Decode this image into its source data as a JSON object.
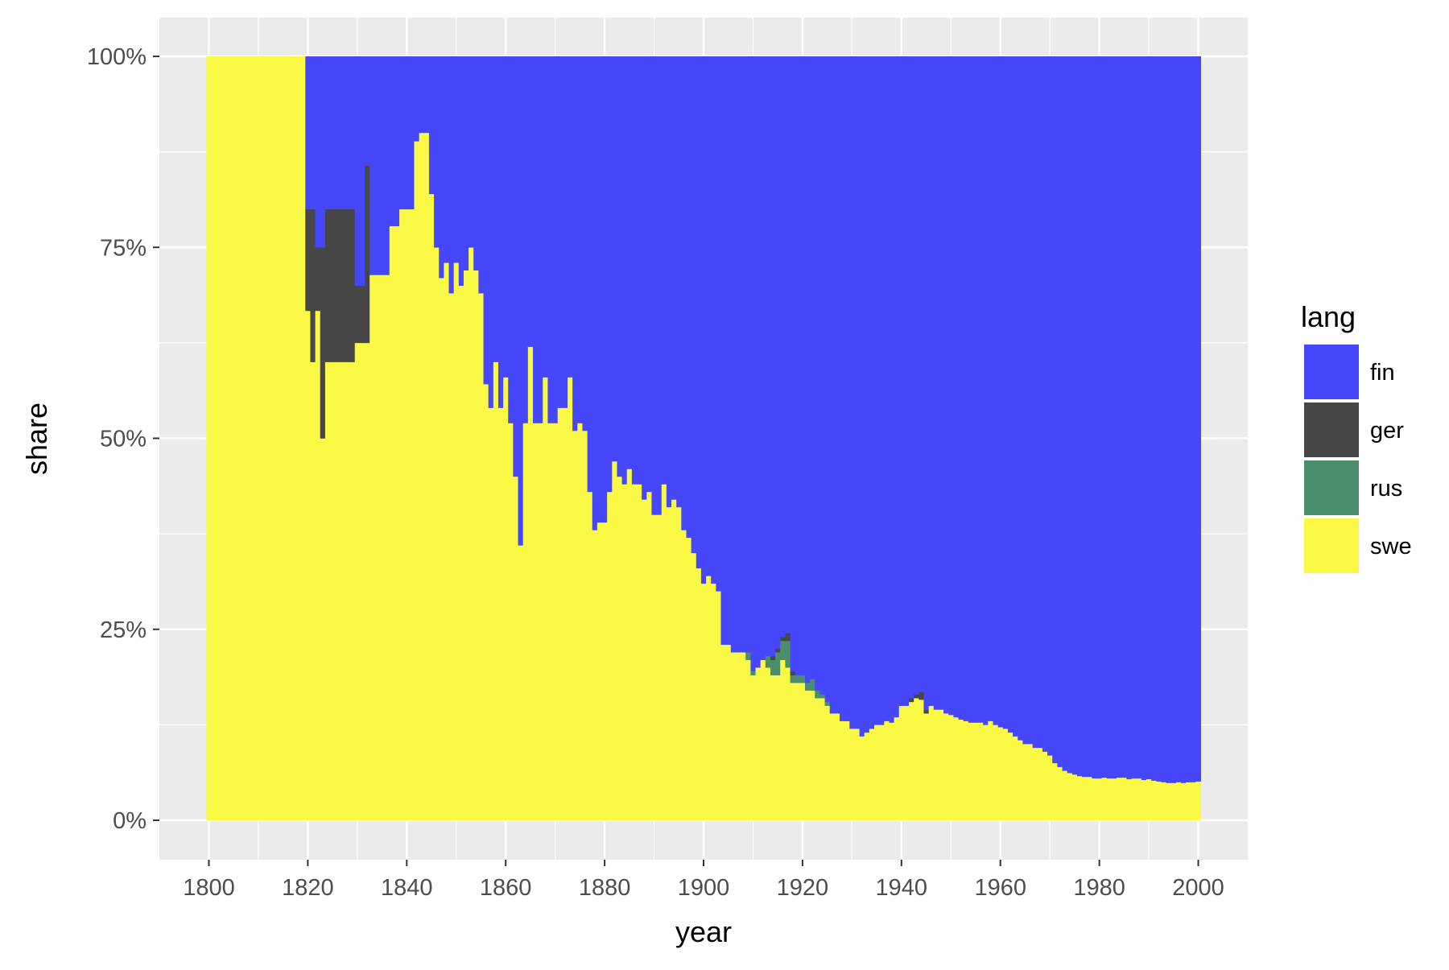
{
  "chart_data": {
    "type": "area",
    "stacking": "fill",
    "xlabel": "year",
    "ylabel": "share",
    "xlim": [
      1790,
      2010
    ],
    "ylim": [
      0,
      1
    ],
    "x_ticks": [
      1800,
      1820,
      1840,
      1860,
      1880,
      1900,
      1920,
      1940,
      1960,
      1980,
      2000
    ],
    "x_tick_labels": [
      "1800",
      "1820",
      "1840",
      "1860",
      "1880",
      "1900",
      "1920",
      "1940",
      "1960",
      "1980",
      "2000"
    ],
    "y_ticks": [
      0,
      0.25,
      0.5,
      0.75,
      1
    ],
    "y_tick_labels": [
      "0%",
      "25%",
      "50%",
      "75%",
      "100%"
    ],
    "grid": true,
    "legend": {
      "title": "lang",
      "position": "right",
      "entries": [
        {
          "label": "fin",
          "color": "#4646FA"
        },
        {
          "label": "ger",
          "color": "#474747"
        },
        {
          "label": "rus",
          "color": "#4A8E6B"
        },
        {
          "label": "swe",
          "color": "#FAFA46"
        }
      ]
    },
    "colors": {
      "fin": "#4646FA",
      "ger": "#474747",
      "rus": "#4A8E6B",
      "swe": "#FAFA46",
      "panel": "#EBEBEB",
      "grid": "#FFFFFF"
    },
    "stack_order_bottom_to_top": [
      "swe",
      "rus",
      "ger",
      "fin"
    ],
    "series_points": {
      "swe": [
        [
          1800,
          1
        ],
        [
          1819,
          1
        ],
        [
          1820,
          0.667
        ],
        [
          1821,
          0.6
        ],
        [
          1822,
          0.667
        ],
        [
          1823,
          0.5
        ],
        [
          1824,
          0.6
        ],
        [
          1829,
          0.6
        ],
        [
          1830,
          0.625
        ],
        [
          1832,
          0.625
        ],
        [
          1833,
          0.714
        ],
        [
          1836,
          0.714
        ],
        [
          1837,
          0.778
        ],
        [
          1838,
          0.778
        ],
        [
          1839,
          0.8
        ],
        [
          1841,
          0.8
        ],
        [
          1842,
          0.889
        ],
        [
          1843,
          0.9
        ],
        [
          1844,
          0.9
        ],
        [
          1845,
          0.82
        ],
        [
          1846,
          0.75
        ],
        [
          1847,
          0.71
        ],
        [
          1848,
          0.73
        ],
        [
          1849,
          0.69
        ],
        [
          1850,
          0.73
        ],
        [
          1851,
          0.7
        ],
        [
          1852,
          0.72
        ],
        [
          1853,
          0.75
        ],
        [
          1854,
          0.72
        ],
        [
          1855,
          0.69
        ],
        [
          1856,
          0.571
        ],
        [
          1857,
          0.54
        ],
        [
          1858,
          0.6
        ],
        [
          1859,
          0.54
        ],
        [
          1860,
          0.58
        ],
        [
          1861,
          0.52
        ],
        [
          1862,
          0.45
        ],
        [
          1863,
          0.36
        ],
        [
          1864,
          0.52
        ],
        [
          1865,
          0.62
        ],
        [
          1866,
          0.52
        ],
        [
          1867,
          0.52
        ],
        [
          1868,
          0.58
        ],
        [
          1869,
          0.52
        ],
        [
          1870,
          0.52
        ],
        [
          1871,
          0.54
        ],
        [
          1872,
          0.54
        ],
        [
          1873,
          0.58
        ],
        [
          1874,
          0.51
        ],
        [
          1875,
          0.52
        ],
        [
          1876,
          0.51
        ],
        [
          1877,
          0.43
        ],
        [
          1878,
          0.38
        ],
        [
          1879,
          0.39
        ],
        [
          1880,
          0.39
        ],
        [
          1881,
          0.43
        ],
        [
          1882,
          0.47
        ],
        [
          1883,
          0.45
        ],
        [
          1884,
          0.44
        ],
        [
          1885,
          0.46
        ],
        [
          1886,
          0.44
        ],
        [
          1887,
          0.44
        ],
        [
          1888,
          0.42
        ],
        [
          1889,
          0.43
        ],
        [
          1890,
          0.4
        ],
        [
          1891,
          0.4
        ],
        [
          1892,
          0.44
        ],
        [
          1893,
          0.41
        ],
        [
          1894,
          0.42
        ],
        [
          1895,
          0.41
        ],
        [
          1896,
          0.38
        ],
        [
          1897,
          0.37
        ],
        [
          1898,
          0.35
        ],
        [
          1899,
          0.33
        ],
        [
          1900,
          0.31
        ],
        [
          1901,
          0.32
        ],
        [
          1902,
          0.31
        ],
        [
          1903,
          0.3
        ],
        [
          1904,
          0.23
        ],
        [
          1905,
          0.23
        ],
        [
          1906,
          0.22
        ],
        [
          1907,
          0.22
        ],
        [
          1908,
          0.22
        ],
        [
          1909,
          0.21
        ],
        [
          1910,
          0.19
        ],
        [
          1911,
          0.2
        ],
        [
          1912,
          0.21
        ],
        [
          1913,
          0.2
        ],
        [
          1914,
          0.19
        ],
        [
          1915,
          0.19
        ],
        [
          1916,
          0.21
        ],
        [
          1917,
          0.2
        ],
        [
          1918,
          0.18
        ],
        [
          1919,
          0.18
        ],
        [
          1920,
          0.18
        ],
        [
          1921,
          0.17
        ],
        [
          1922,
          0.17
        ],
        [
          1923,
          0.16
        ],
        [
          1924,
          0.16
        ],
        [
          1925,
          0.15
        ],
        [
          1926,
          0.14
        ],
        [
          1927,
          0.14
        ],
        [
          1928,
          0.13
        ],
        [
          1929,
          0.13
        ],
        [
          1930,
          0.12
        ],
        [
          1931,
          0.12
        ],
        [
          1932,
          0.11
        ],
        [
          1933,
          0.115
        ],
        [
          1934,
          0.12
        ],
        [
          1935,
          0.125
        ],
        [
          1936,
          0.125
        ],
        [
          1937,
          0.13
        ],
        [
          1938,
          0.128
        ],
        [
          1939,
          0.135
        ],
        [
          1940,
          0.15
        ],
        [
          1941,
          0.15
        ],
        [
          1942,
          0.155
        ],
        [
          1943,
          0.16
        ],
        [
          1944,
          0.158
        ],
        [
          1945,
          0.14
        ],
        [
          1946,
          0.15
        ],
        [
          1947,
          0.145
        ],
        [
          1948,
          0.145
        ],
        [
          1949,
          0.14
        ],
        [
          1950,
          0.138
        ],
        [
          1951,
          0.135
        ],
        [
          1952,
          0.132
        ],
        [
          1953,
          0.13
        ],
        [
          1954,
          0.128
        ],
        [
          1955,
          0.128
        ],
        [
          1956,
          0.128
        ],
        [
          1957,
          0.125
        ],
        [
          1958,
          0.13
        ],
        [
          1959,
          0.125
        ],
        [
          1960,
          0.122
        ],
        [
          1961,
          0.12
        ],
        [
          1962,
          0.115
        ],
        [
          1963,
          0.11
        ],
        [
          1964,
          0.105
        ],
        [
          1965,
          0.1
        ],
        [
          1966,
          0.1
        ],
        [
          1967,
          0.095
        ],
        [
          1968,
          0.095
        ],
        [
          1969,
          0.09
        ],
        [
          1970,
          0.085
        ],
        [
          1971,
          0.075
        ],
        [
          1972,
          0.07
        ],
        [
          1973,
          0.065
        ],
        [
          1974,
          0.062
        ],
        [
          1975,
          0.06
        ],
        [
          1976,
          0.058
        ],
        [
          1977,
          0.057
        ],
        [
          1978,
          0.057
        ],
        [
          1979,
          0.055
        ],
        [
          1980,
          0.055
        ],
        [
          1981,
          0.056
        ],
        [
          1982,
          0.055
        ],
        [
          1983,
          0.055
        ],
        [
          1984,
          0.056
        ],
        [
          1985,
          0.056
        ],
        [
          1986,
          0.054
        ],
        [
          1987,
          0.055
        ],
        [
          1988,
          0.055
        ],
        [
          1989,
          0.053
        ],
        [
          1990,
          0.054
        ],
        [
          1991,
          0.052
        ],
        [
          1992,
          0.051
        ],
        [
          1993,
          0.05
        ],
        [
          1994,
          0.049
        ],
        [
          1995,
          0.049
        ],
        [
          1996,
          0.05
        ],
        [
          1997,
          0.049
        ],
        [
          1998,
          0.05
        ],
        [
          1999,
          0.05
        ],
        [
          2000,
          0.051
        ]
      ],
      "rus": [
        [
          1909,
          0.01
        ],
        [
          1910,
          0.005
        ],
        [
          1913,
          0.015
        ],
        [
          1914,
          0.02
        ],
        [
          1915,
          0.03
        ],
        [
          1916,
          0.025
        ],
        [
          1917,
          0.035
        ],
        [
          1918,
          0.01
        ],
        [
          1919,
          0.01
        ],
        [
          1920,
          0.01
        ],
        [
          1921,
          0.01
        ],
        [
          1922,
          0.015
        ],
        [
          1923,
          0.01
        ],
        [
          1924,
          0.005
        ],
        [
          1925,
          0.005
        ]
      ],
      "ger": [
        [
          1820,
          0.133
        ],
        [
          1821,
          0.2
        ],
        [
          1822,
          0.083
        ],
        [
          1823,
          0.25
        ],
        [
          1824,
          0.2
        ],
        [
          1825,
          0.2
        ],
        [
          1826,
          0.2
        ],
        [
          1827,
          0.2
        ],
        [
          1828,
          0.2
        ],
        [
          1829,
          0.2
        ],
        [
          1830,
          0.075
        ],
        [
          1831,
          0.075
        ],
        [
          1832,
          0.232
        ],
        [
          1914,
          0.005
        ],
        [
          1915,
          0.005
        ],
        [
          1916,
          0.005
        ],
        [
          1917,
          0.01
        ],
        [
          1918,
          0.005
        ],
        [
          1942,
          0.005
        ],
        [
          1943,
          0.005
        ],
        [
          1944,
          0.01
        ],
        [
          1945,
          0.005
        ]
      ]
    }
  }
}
